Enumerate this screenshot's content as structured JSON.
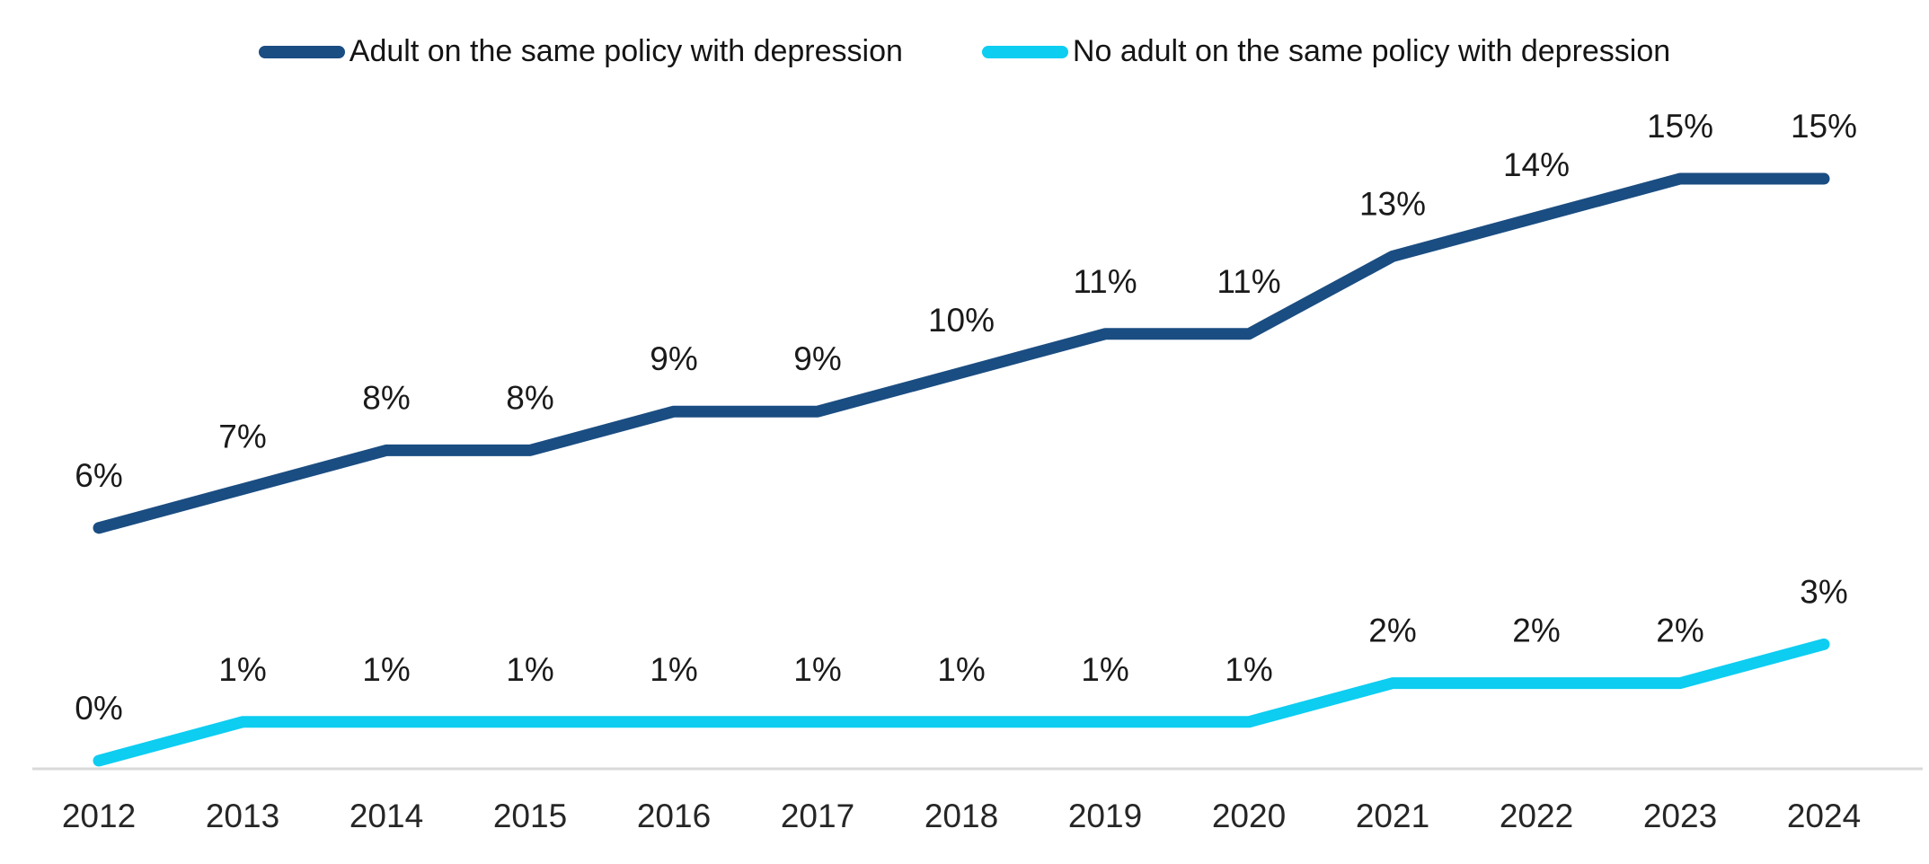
{
  "chart_data": {
    "type": "line",
    "title": "",
    "xlabel": "",
    "ylabel": "",
    "categories": [
      "2012",
      "2013",
      "2014",
      "2015",
      "2016",
      "2017",
      "2018",
      "2019",
      "2020",
      "2021",
      "2022",
      "2023",
      "2024"
    ],
    "series": [
      {
        "name": "Adult on the same policy with depression",
        "color": "#1A4D82",
        "values": [
          6,
          7,
          8,
          8,
          9,
          9,
          10,
          11,
          11,
          13,
          14,
          15,
          15
        ]
      },
      {
        "name": "No adult on the same policy with depression",
        "color": "#0DCDF1",
        "values": [
          0,
          1,
          1,
          1,
          1,
          1,
          1,
          1,
          1,
          2,
          2,
          2,
          3
        ]
      }
    ],
    "value_suffix": "%",
    "data_labels": true,
    "legend_position": "top",
    "gridlines": false,
    "y_axis_visible": false,
    "ylim": [
      0,
      16
    ],
    "x_axis_line_color": "#D9D9D9",
    "label_color": "#1A1A1A",
    "axis_label_color": "#262626"
  }
}
